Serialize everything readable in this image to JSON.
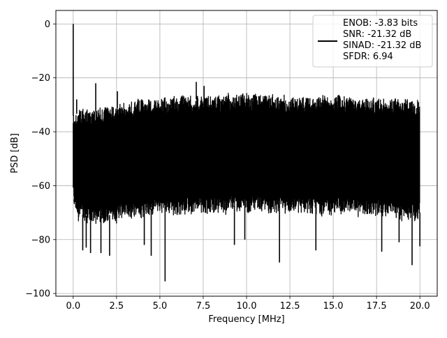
{
  "chart_data": {
    "type": "line",
    "title": "",
    "xlabel": "Frequency [MHz]",
    "ylabel": "PSD [dB]",
    "xlim": [
      -1,
      21
    ],
    "ylim": [
      -101,
      5
    ],
    "xticks": [
      0,
      2.5,
      5,
      7.5,
      10,
      12.5,
      15,
      17.5,
      20
    ],
    "xtick_labels": [
      "0.0",
      "2.5",
      "5.0",
      "7.5",
      "10.0",
      "12.5",
      "15.0",
      "17.5",
      "20.0"
    ],
    "yticks": [
      0,
      -20,
      -40,
      -60,
      -80,
      -100
    ],
    "ytick_labels": [
      "0",
      "−20",
      "−40",
      "−60",
      "−80",
      "−100"
    ],
    "grid": true,
    "legend_position": "top-right",
    "legend_lines": [
      "ENOB: -3.83 bits",
      "SNR: -21.32 dB",
      "SINAD: -21.32 dB",
      "SFDR: 6.94"
    ],
    "series": [
      {
        "color": "#000000",
        "envelope": {
          "x": [
            0,
            0.3,
            1,
            2,
            3,
            4,
            5,
            6,
            7,
            8,
            9,
            10,
            11,
            12,
            13,
            14,
            15,
            16,
            17,
            18,
            19,
            20
          ],
          "upper": [
            -32,
            -31,
            -31,
            -30,
            -28.5,
            -27.5,
            -27,
            -26.5,
            -26,
            -26,
            -25.5,
            -25.5,
            -25.5,
            -25.5,
            -26,
            -26,
            -26,
            -26.5,
            -27,
            -27,
            -27.5,
            -28
          ],
          "lower": [
            -66,
            -72,
            -74,
            -73,
            -72,
            -71,
            -70,
            -70,
            -69.5,
            -69.5,
            -69.5,
            -69.5,
            -69.5,
            -69.5,
            -69.5,
            -70,
            -70,
            -70,
            -71,
            -71,
            -72,
            -72
          ]
        },
        "peaks": [
          {
            "x": 0.0,
            "y": 0
          },
          {
            "x": 0.2,
            "y": -28
          },
          {
            "x": 1.3,
            "y": -22
          },
          {
            "x": 2.55,
            "y": -25
          },
          {
            "x": 7.1,
            "y": -21.5
          },
          {
            "x": 7.55,
            "y": -23
          }
        ],
        "dips": [
          {
            "x": 0.05,
            "y": -66
          },
          {
            "x": 0.55,
            "y": -84
          },
          {
            "x": 0.75,
            "y": -83
          },
          {
            "x": 1.0,
            "y": -85
          },
          {
            "x": 1.6,
            "y": -85
          },
          {
            "x": 2.1,
            "y": -86
          },
          {
            "x": 4.1,
            "y": -82
          },
          {
            "x": 4.5,
            "y": -86
          },
          {
            "x": 5.3,
            "y": -95.5
          },
          {
            "x": 9.3,
            "y": -82
          },
          {
            "x": 9.9,
            "y": -80
          },
          {
            "x": 11.9,
            "y": -88.5
          },
          {
            "x": 14.0,
            "y": -84
          },
          {
            "x": 17.8,
            "y": -84.5
          },
          {
            "x": 18.8,
            "y": -81
          },
          {
            "x": 19.55,
            "y": -89.5
          },
          {
            "x": 20.0,
            "y": -82.5
          }
        ]
      }
    ]
  }
}
